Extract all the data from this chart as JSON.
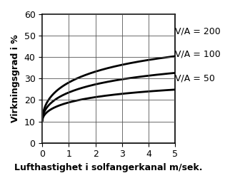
{
  "xlabel": "Lufthastighet i solfangerkanal m/sek.",
  "ylabel": "Virkningsgrad i %",
  "xlim": [
    0,
    5
  ],
  "ylim": [
    0,
    60
  ],
  "xticks": [
    0,
    1,
    2,
    3,
    4,
    5
  ],
  "yticks": [
    0,
    10,
    20,
    30,
    40,
    50,
    60
  ],
  "curves": [
    {
      "label": "V/A = 200",
      "y0": 10.0,
      "A": 43.0,
      "k": 0.55
    },
    {
      "label": "V/A = 100",
      "y0": 10.0,
      "A": 32.0,
      "k": 0.55
    },
    {
      "label": "V/A = 50",
      "y0": 10.0,
      "A": 21.0,
      "k": 0.55
    }
  ],
  "line_color": "#000000",
  "line_width": 2.0,
  "background_color": "#ffffff",
  "legend_fontsize": 9,
  "axis_label_fontsize": 9,
  "tick_fontsize": 9,
  "xlabel_fontsize": 9,
  "ylabel_fontsize": 9
}
